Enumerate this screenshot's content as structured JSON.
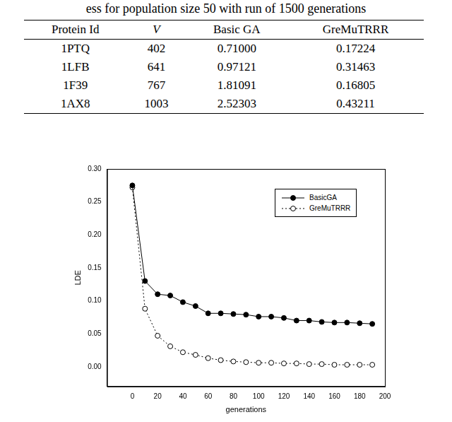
{
  "caption": "ess for population size 50 with run of 1500 generations",
  "table": {
    "columns": [
      "Protein Id",
      "V",
      "Basic GA",
      "GreMuTRRR"
    ],
    "rows": [
      [
        "1PTQ",
        "402",
        "0.71000",
        "0.17224"
      ],
      [
        "1LFB",
        "641",
        "0.97121",
        "0.31463"
      ],
      [
        "1F39",
        "767",
        "1.81091",
        "0.16805"
      ],
      [
        "1AX8",
        "1003",
        "2.52303",
        "0.43211"
      ]
    ]
  },
  "chart_data": {
    "type": "line",
    "x_label": "generations",
    "y_label": "LDE",
    "x": [
      0,
      10,
      20,
      30,
      40,
      50,
      60,
      70,
      80,
      90,
      100,
      110,
      120,
      130,
      140,
      150,
      160,
      170,
      180,
      190
    ],
    "series": [
      {
        "name": "BasicGA",
        "color": "#000000",
        "marker": "filled_circle",
        "line_style": "solid",
        "values": [
          0.275,
          0.13,
          0.11,
          0.108,
          0.098,
          0.092,
          0.081,
          0.081,
          0.08,
          0.079,
          0.076,
          0.076,
          0.074,
          0.07,
          0.07,
          0.068,
          0.067,
          0.067,
          0.066,
          0.065
        ]
      },
      {
        "name": "GreMuTRRR",
        "color": "#000000",
        "marker": "open_circle",
        "line_style": "dotted",
        "values": [
          0.272,
          0.088,
          0.047,
          0.031,
          0.022,
          0.018,
          0.013,
          0.01,
          0.008,
          0.007,
          0.006,
          0.006,
          0.005,
          0.005,
          0.004,
          0.004,
          0.003,
          0.003,
          0.003,
          0.003
        ]
      }
    ],
    "xlim": [
      -20,
      200
    ],
    "xticks": [
      0,
      20,
      40,
      60,
      80,
      100,
      120,
      140,
      160,
      180,
      200
    ],
    "ylim": [
      -0.03,
      0.3
    ],
    "yticks": [
      {
        "value": 0,
        "label": "0.00"
      },
      {
        "value": 0.05,
        "label": "0.05"
      },
      {
        "value": 0.1,
        "label": "0.10"
      },
      {
        "value": 0.15,
        "label": "0.15"
      },
      {
        "value": 0.2,
        "label": "0.20"
      },
      {
        "value": 0.25,
        "label": "0.25"
      },
      {
        "value": 0.3,
        "label": "0.30"
      }
    ],
    "grid": false,
    "legend": "upper right"
  }
}
